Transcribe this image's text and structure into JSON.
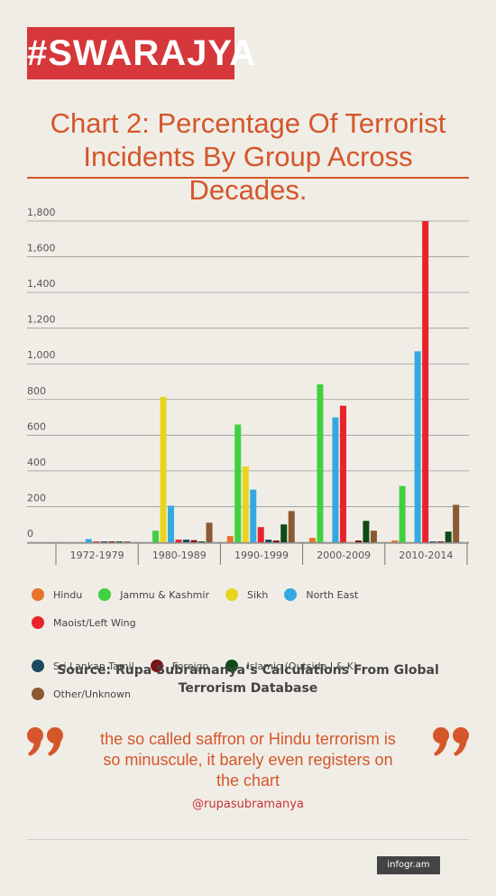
{
  "logo": "#SWARAJYA",
  "chart_data": {
    "type": "bar",
    "title": "Chart 2: Percentage Of Terrorist Incidents By Group Across Decades.",
    "categories": [
      "1972-1979",
      "1980-1989",
      "1990-1999",
      "2000-2009",
      "2010-2014"
    ],
    "series": [
      {
        "name": "Hindu",
        "color": "#e8732a",
        "values": [
          0,
          0,
          35,
          25,
          10
        ]
      },
      {
        "name": "Jammu & Kashmir",
        "color": "#3fd13f",
        "values": [
          0,
          65,
          660,
          885,
          315
        ]
      },
      {
        "name": "Sikh",
        "color": "#e8d41e",
        "values": [
          0,
          815,
          425,
          0,
          0
        ]
      },
      {
        "name": "North East",
        "color": "#35a8e0",
        "values": [
          18,
          205,
          295,
          700,
          1070
        ]
      },
      {
        "name": "Maoist/Left Wing",
        "color": "#e8232b",
        "values": [
          5,
          15,
          85,
          765,
          1800
        ]
      },
      {
        "name": "Sri Lankan Tamil",
        "color": "#1b4a60",
        "values": [
          5,
          15,
          15,
          0,
          5
        ]
      },
      {
        "name": "Foreign",
        "color": "#7a1515",
        "values": [
          5,
          12,
          10,
          10,
          5
        ]
      },
      {
        "name": "Islamic (Outside J & K)",
        "color": "#0f4a17",
        "values": [
          5,
          5,
          100,
          120,
          60
        ]
      },
      {
        "name": "Other/Unknown",
        "color": "#8a5a32",
        "values": [
          5,
          110,
          175,
          65,
          210
        ]
      }
    ],
    "ylim": [
      0,
      1800
    ],
    "yticks": [
      0,
      200,
      400,
      600,
      800,
      {
        "value": 1000,
        "label": "1,000"
      },
      {
        "value": 1200,
        "label": "1,200"
      },
      {
        "value": 1400,
        "label": "1,400"
      },
      {
        "value": 1600,
        "label": "1,600"
      },
      {
        "value": 1800,
        "label": "1,800"
      }
    ],
    "grid": true
  },
  "source": "Source: Rupa Subramanya’s Calculations From Global Terrorism Database",
  "quote": {
    "text": "the so called saffron or Hindu terrorism is so minuscule, it barely even registers on the chart",
    "author": "@rupasubramanya"
  },
  "footer": "infogr.am"
}
